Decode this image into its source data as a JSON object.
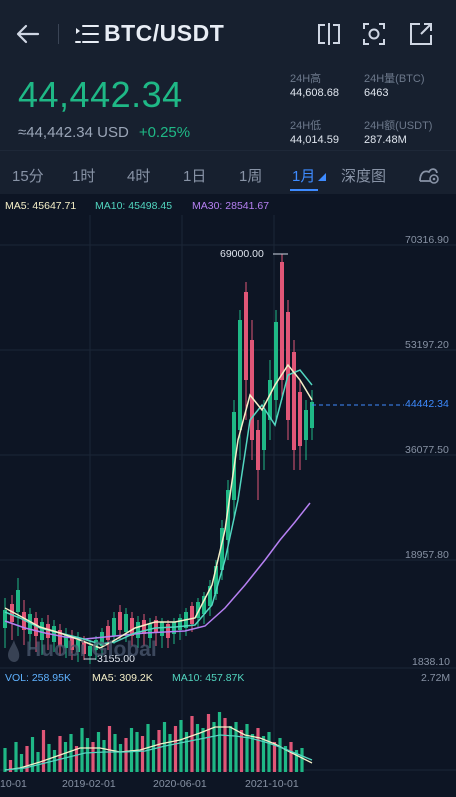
{
  "header": {
    "pair": "BTC/USDT",
    "price": "44,442.34",
    "usd_equiv": "≈44,442.34 USD",
    "change": "+0.25%",
    "stats": [
      {
        "label": "24H高",
        "value": "44,608.68"
      },
      {
        "label": "24H量(BTC)",
        "value": "6463"
      },
      {
        "label": "24H低",
        "value": "44,014.59"
      },
      {
        "label": "24H额(USDT)",
        "value": "287.48M"
      }
    ]
  },
  "tabs": [
    "15分",
    "1时",
    "4时",
    "1日",
    "1周",
    "1月",
    "深度图"
  ],
  "active_tab": "1月",
  "indicators": {
    "ma5": "MA5: 45647.71",
    "ma10": "MA10: 45498.45",
    "ma30": "MA30: 28541.67",
    "vol": "VOL: 258.95K",
    "vol_ma5": "MA5: 309.2K",
    "vol_ma10": "MA10: 457.87K"
  },
  "price_axis": {
    "ticks": [
      "70316.90",
      "53197.20",
      "36077.50",
      "18957.80",
      "1838.10"
    ],
    "current": "44442.34",
    "high_label": "69000.00",
    "low_label": "3155.00"
  },
  "volume_axis": {
    "max": "2.72M"
  },
  "time_axis": [
    "10-01",
    "2019-02-01",
    "2020-06-01",
    "2021-10-01"
  ],
  "watermark": "Huobi Global",
  "colors": {
    "up": "#1fb886",
    "down": "#e05677",
    "accent": "#3e8bff",
    "ma5": "#f5f0c8",
    "ma10": "#52d6c0",
    "ma30": "#b680f2"
  },
  "chart_data": {
    "type": "candlestick",
    "price_range": [
      1838.1,
      70316.9
    ],
    "current_price": 44442.34,
    "annotated_high": 69000.0,
    "annotated_low": 3155.0
  }
}
